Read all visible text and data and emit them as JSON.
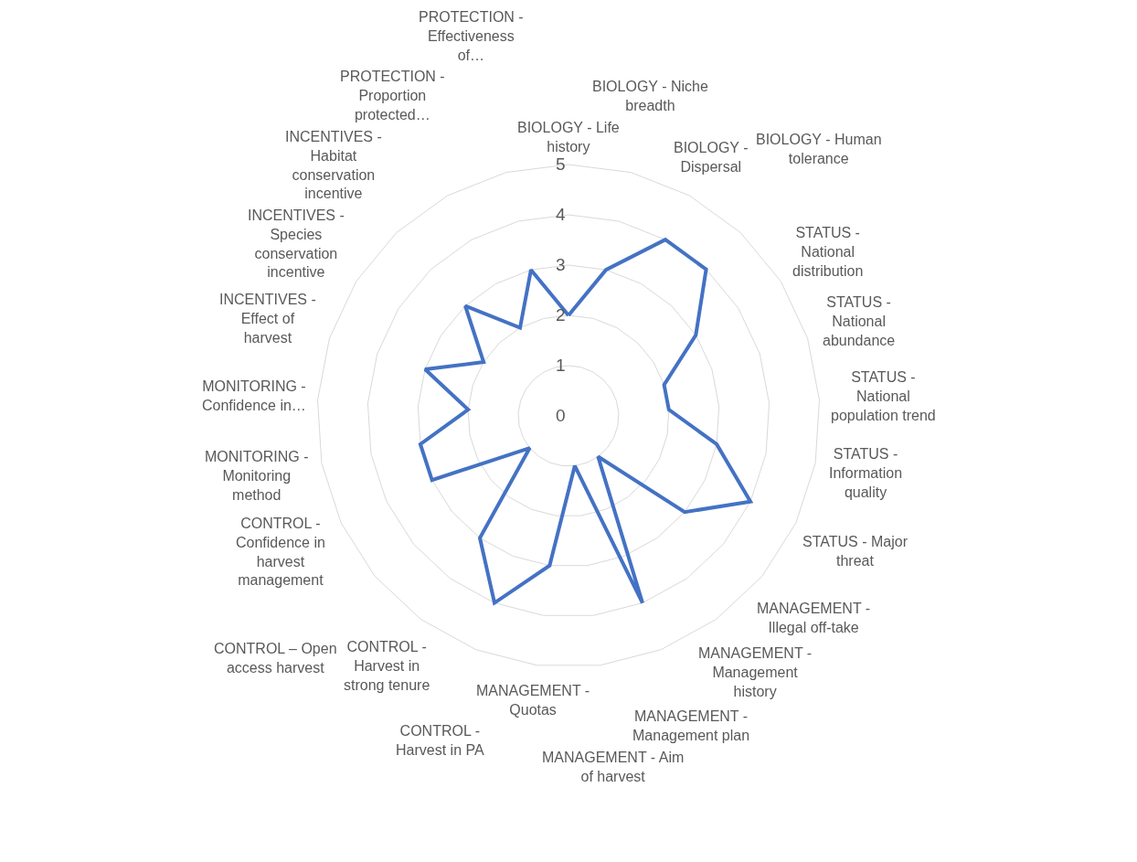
{
  "chart_data": {
    "type": "radar",
    "categories": [
      "BIOLOGY - Life history",
      "BIOLOGY - Niche breadth",
      "BIOLOGY - Dispersal",
      "BIOLOGY - Human tolerance",
      "STATUS - National distribution",
      "STATUS - National abundance",
      "STATUS - National population trend",
      "STATUS - Information quality",
      "STATUS - Major threat",
      "MANAGEMENT - Illegal off-take",
      "MANAGEMENT - Management history",
      "MANAGEMENT - Management plan",
      "MANAGEMENT - Aim of harvest",
      "MANAGEMENT - Quotas",
      "CONTROL - Harvest in PA",
      "CONTROL - Harvest in strong tenure",
      "CONTROL – Open access harvest",
      "CONTROL - Confidence in harvest management",
      "MONITORING - Monitoring method",
      "MONITORING - Confidence in…",
      "INCENTIVES - Effect of harvest",
      "INCENTIVES - Species conservation incentive",
      "INCENTIVES - Habitat conservation incentive",
      "PROTECTION - Proportion protected…",
      "PROTECTION - Effectiveness of…"
    ],
    "series": [
      {
        "color": "#4472c4",
        "values": [
          2,
          3,
          4,
          4,
          3,
          2,
          2,
          3,
          4,
          3,
          1,
          4,
          1,
          3,
          4,
          3,
          1,
          3,
          3,
          2,
          3,
          2,
          3,
          2,
          3
        ]
      }
    ],
    "ylim": [
      0,
      5
    ],
    "yticks": [
      0,
      1,
      2,
      3,
      4,
      5
    ],
    "grid": true,
    "marker": "none",
    "line_style": "solid"
  }
}
